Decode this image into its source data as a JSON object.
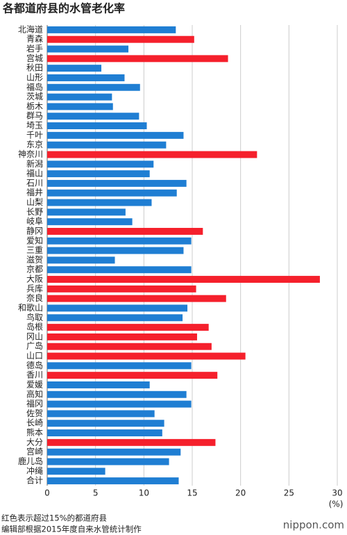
{
  "chart_data": {
    "type": "hbar",
    "title": "各都道府县的水管老化率",
    "categories": [
      "北海道",
      "青森",
      "岩手",
      "宫城",
      "秋田",
      "山形",
      "福岛",
      "茨城",
      "栃木",
      "群马",
      "埼玉",
      "千叶",
      "东京",
      "神奈川",
      "新潟",
      "福山",
      "石川",
      "福井",
      "山梨",
      "长野",
      "岐阜",
      "静冈",
      "爱知",
      "三重",
      "滋贺",
      "京都",
      "大阪",
      "兵库",
      "奈良",
      "和歌山",
      "鸟取",
      "岛根",
      "冈山",
      "广岛",
      "山口",
      "德岛",
      "香川",
      "爱媛",
      "高知",
      "福冈",
      "佐贺",
      "长崎",
      "熊本",
      "大分",
      "宫崎",
      "鹿儿岛",
      "冲绳",
      "合计"
    ],
    "values": [
      13.3,
      15.2,
      8.4,
      18.7,
      5.6,
      8.0,
      9.6,
      6.7,
      6.8,
      9.5,
      10.3,
      14.1,
      12.3,
      21.7,
      11.0,
      10.6,
      14.4,
      13.4,
      10.8,
      8.1,
      8.8,
      16.1,
      14.9,
      14.1,
      7.0,
      14.9,
      28.2,
      15.4,
      18.5,
      14.5,
      14.0,
      16.7,
      15.5,
      17.0,
      20.5,
      14.9,
      17.6,
      10.6,
      14.4,
      14.9,
      11.1,
      12.1,
      11.9,
      17.4,
      13.8,
      12.6,
      6.0,
      13.6
    ],
    "colors": [
      "#1f7ed3",
      "#f5202c",
      "#1f7ed3",
      "#f5202c",
      "#1f7ed3",
      "#1f7ed3",
      "#1f7ed3",
      "#1f7ed3",
      "#1f7ed3",
      "#1f7ed3",
      "#1f7ed3",
      "#1f7ed3",
      "#1f7ed3",
      "#f5202c",
      "#1f7ed3",
      "#1f7ed3",
      "#1f7ed3",
      "#1f7ed3",
      "#1f7ed3",
      "#1f7ed3",
      "#1f7ed3",
      "#f5202c",
      "#1f7ed3",
      "#1f7ed3",
      "#1f7ed3",
      "#1f7ed3",
      "#f5202c",
      "#f5202c",
      "#f5202c",
      "#1f7ed3",
      "#1f7ed3",
      "#f5202c",
      "#f5202c",
      "#f5202c",
      "#f5202c",
      "#1f7ed3",
      "#f5202c",
      "#1f7ed3",
      "#1f7ed3",
      "#1f7ed3",
      "#1f7ed3",
      "#1f7ed3",
      "#1f7ed3",
      "#f5202c",
      "#1f7ed3",
      "#1f7ed3",
      "#1f7ed3",
      "#1f7ed3"
    ],
    "xlim": [
      0,
      30
    ],
    "xticks": [
      0,
      5,
      10,
      15,
      20,
      25,
      30
    ],
    "x_unit": "(%)",
    "grid": true,
    "notes": [
      "红色表示超过15%的都道府县",
      "编辑部根据2015年度自来水管统计制作"
    ],
    "source_logo": "nippon.com"
  }
}
